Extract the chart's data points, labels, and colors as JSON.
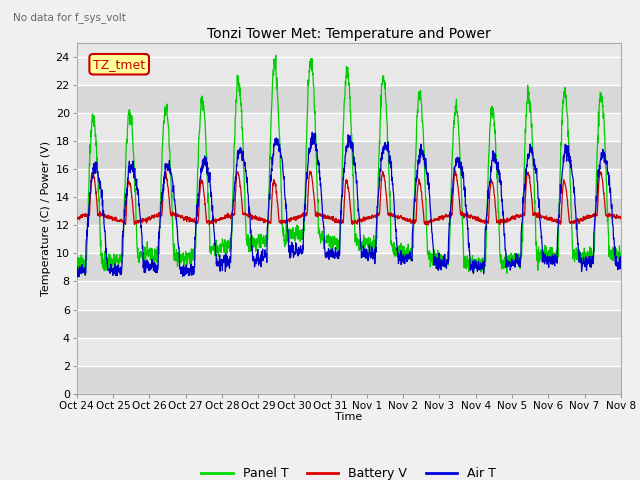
{
  "title": "Tonzi Tower Met: Temperature and Power",
  "subtitle": "No data for f_sys_volt",
  "ylabel": "Temperature (C) / Power (V)",
  "xlabel": "Time",
  "ylim": [
    0,
    25
  ],
  "yticks": [
    0,
    2,
    4,
    6,
    8,
    10,
    12,
    14,
    16,
    18,
    20,
    22,
    24
  ],
  "xtick_labels": [
    "Oct 24",
    "Oct 25",
    "Oct 26",
    "Oct 27",
    "Oct 28",
    "Oct 29",
    "Oct 30",
    "Oct 31",
    "Nov 1",
    "Nov 2",
    "Nov 3",
    "Nov 4",
    "Nov 5",
    "Nov 6",
    "Nov 7",
    "Nov 8"
  ],
  "legend_labels": [
    "Panel T",
    "Battery V",
    "Air T"
  ],
  "legend_colors": [
    "#00dd00",
    "#dd0000",
    "#0000dd"
  ],
  "panel_color": "#00cc00",
  "battery_color": "#cc0000",
  "air_color": "#0000cc",
  "plot_bg_color": "#e8e8e8",
  "fig_bg_color": "#f0f0f0",
  "annotation_text": "TZ_tmet",
  "annotation_color": "#cc0000",
  "annotation_bg": "#ffff99",
  "n_days": 15,
  "n_points": 2000,
  "figsize": [
    6.4,
    4.8
  ],
  "dpi": 100
}
